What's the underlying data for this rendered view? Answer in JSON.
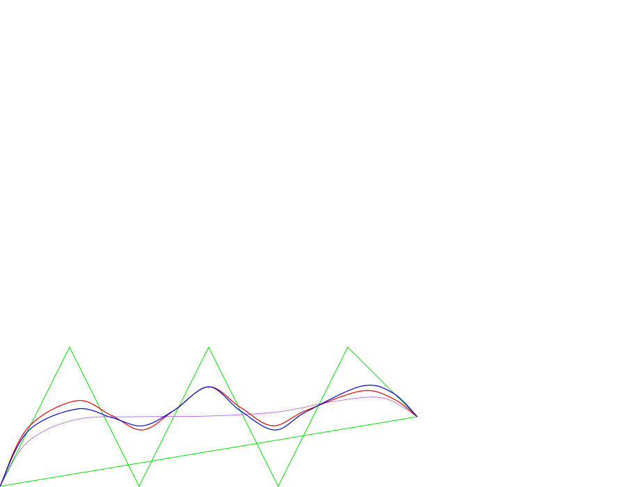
{
  "colors": {
    "background": "#ffffff",
    "control_polygon": "#00e000",
    "red_curve": "#e00000",
    "blue_curve": "#0000d0",
    "purple_curve": "#7000b0"
  },
  "diagram": {
    "description_type": "spline-vs-control-polygon",
    "control_points": [
      [
        0,
        0
      ],
      [
        1,
        2
      ],
      [
        2,
        0
      ],
      [
        3,
        2
      ],
      [
        4,
        0
      ],
      [
        5,
        2
      ],
      [
        6,
        1
      ]
    ],
    "closing_segment": true,
    "curves": [
      {
        "key": "red",
        "kind": "bezier-like smooth",
        "color_key": "red_curve"
      },
      {
        "key": "blue",
        "kind": "bezier-like smooth",
        "color_key": "blue_curve"
      },
      {
        "key": "purple",
        "kind": "dotted smooth",
        "color_key": "purple_curve",
        "dotted": true
      }
    ]
  }
}
